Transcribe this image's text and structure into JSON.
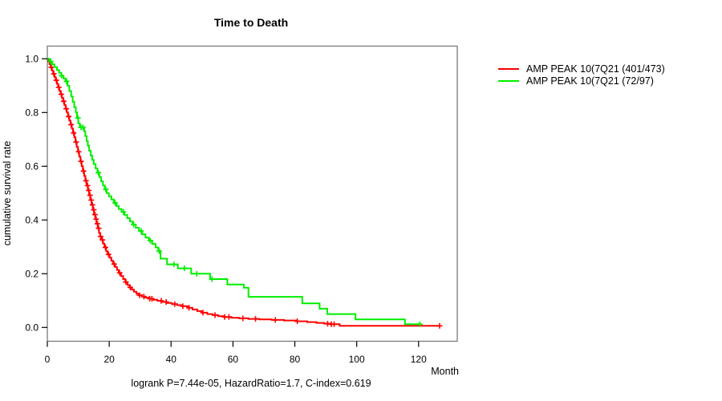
{
  "title": "Time to Death",
  "footnote": "logrank P=7.44e-05, HazardRatio=1.7, C-index=0.619",
  "chart_data": {
    "type": "line",
    "subtype": "kaplan-meier-step",
    "title": "Time to Death",
    "xlabel": "Month",
    "ylabel": "cumulative survival rate",
    "xlim": [
      0,
      132
    ],
    "ylim": [
      0.0,
      1.0
    ],
    "grid": false,
    "legend_position": "right-outside",
    "box_color": "#7a7a7a",
    "x_ticks": [
      {
        "v": 0,
        "label": "0"
      },
      {
        "v": 20,
        "label": "20"
      },
      {
        "v": 40,
        "label": "40"
      },
      {
        "v": 60,
        "label": "60"
      },
      {
        "v": 80,
        "label": "80"
      },
      {
        "v": 100,
        "label": "100"
      },
      {
        "v": 120,
        "label": "120"
      }
    ],
    "y_ticks": [
      {
        "v": 0.0,
        "label": "0.0"
      },
      {
        "v": 0.2,
        "label": "0.2"
      },
      {
        "v": 0.4,
        "label": "0.4"
      },
      {
        "v": 0.6,
        "label": "0.6"
      },
      {
        "v": 0.8,
        "label": "0.8"
      },
      {
        "v": 1.0,
        "label": "1.0"
      }
    ],
    "series": [
      {
        "name": "AMP PEAK 10(7Q21 (401/473)",
        "events_over_n": "401/473",
        "color": "#ff0000",
        "end_month": 126.8,
        "steps": [
          [
            0,
            1
          ],
          [
            0.3,
            0.99
          ],
          [
            0.7,
            0.98
          ],
          [
            1.1,
            0.968
          ],
          [
            1.5,
            0.956
          ],
          [
            1.9,
            0.944
          ],
          [
            2.3,
            0.932
          ],
          [
            2.7,
            0.92
          ],
          [
            3.1,
            0.907
          ],
          [
            3.5,
            0.894
          ],
          [
            3.9,
            0.881
          ],
          [
            4.3,
            0.868
          ],
          [
            4.7,
            0.855
          ],
          [
            5.1,
            0.842
          ],
          [
            5.5,
            0.828
          ],
          [
            5.9,
            0.814
          ],
          [
            6.3,
            0.8
          ],
          [
            6.7,
            0.785
          ],
          [
            7.1,
            0.77
          ],
          [
            7.5,
            0.755
          ],
          [
            7.9,
            0.74
          ],
          [
            8.3,
            0.724
          ],
          [
            8.7,
            0.708
          ],
          [
            9.1,
            0.69
          ],
          [
            9.5,
            0.672
          ],
          [
            9.9,
            0.654
          ],
          [
            10.3,
            0.636
          ],
          [
            10.7,
            0.618
          ],
          [
            11.1,
            0.6
          ],
          [
            11.5,
            0.582
          ],
          [
            11.9,
            0.564
          ],
          [
            12.3,
            0.546
          ],
          [
            12.7,
            0.528
          ],
          [
            13.1,
            0.51
          ],
          [
            13.5,
            0.492
          ],
          [
            13.9,
            0.474
          ],
          [
            14.3,
            0.456
          ],
          [
            14.7,
            0.438
          ],
          [
            15.1,
            0.42
          ],
          [
            15.5,
            0.403
          ],
          [
            15.9,
            0.386
          ],
          [
            16.3,
            0.369
          ],
          [
            16.7,
            0.352
          ],
          [
            17.1,
            0.339
          ],
          [
            17.5,
            0.326
          ],
          [
            18,
            0.312
          ],
          [
            18.5,
            0.298
          ],
          [
            19,
            0.284
          ],
          [
            19.5,
            0.272
          ],
          [
            20.1,
            0.26
          ],
          [
            20.7,
            0.248
          ],
          [
            21.3,
            0.236
          ],
          [
            21.9,
            0.225
          ],
          [
            22.5,
            0.214
          ],
          [
            23.1,
            0.203
          ],
          [
            23.8,
            0.191
          ],
          [
            24.5,
            0.18
          ],
          [
            25.2,
            0.169
          ],
          [
            25.9,
            0.158
          ],
          [
            26.6,
            0.149
          ],
          [
            27.3,
            0.141
          ],
          [
            28,
            0.133
          ],
          [
            28.8,
            0.126
          ],
          [
            29.6,
            0.12
          ],
          [
            30.6,
            0.115
          ],
          [
            31.7,
            0.111
          ],
          [
            32.9,
            0.107
          ],
          [
            34.2,
            0.103
          ],
          [
            35.6,
            0.099
          ],
          [
            37.1,
            0.095
          ],
          [
            38.7,
            0.091
          ],
          [
            40.3,
            0.087
          ],
          [
            42,
            0.083
          ],
          [
            43.7,
            0.079
          ],
          [
            45.3,
            0.073
          ],
          [
            46.9,
            0.067
          ],
          [
            48.5,
            0.061
          ],
          [
            50.1,
            0.055
          ],
          [
            51.7,
            0.05
          ],
          [
            53.4,
            0.046
          ],
          [
            55.2,
            0.042
          ],
          [
            57.2,
            0.039
          ],
          [
            59.5,
            0.036
          ],
          [
            62,
            0.034
          ],
          [
            65,
            0.032
          ],
          [
            68.5,
            0.03
          ],
          [
            72.5,
            0.028
          ],
          [
            76.5,
            0.026
          ],
          [
            80.5,
            0.023
          ],
          [
            84,
            0.02
          ],
          [
            87,
            0.017
          ],
          [
            89.5,
            0.014
          ],
          [
            91.5,
            0.012
          ],
          [
            94.5,
            0.006
          ]
        ],
        "censor_months": [
          1.3,
          2.1,
          2.9,
          3.7,
          4.5,
          5.3,
          6.1,
          6.9,
          7.7,
          8.5,
          9.3,
          10.1,
          10.9,
          11.7,
          12.5,
          13,
          13.4,
          13.8,
          14.2,
          14.6,
          15,
          15.4,
          15.8,
          16.2,
          16.6,
          17.2,
          17.8,
          18.8,
          19.8,
          21.6,
          23.4,
          25.4,
          26.8,
          29.8,
          31.2,
          33.1,
          33.8,
          36.8,
          38.4,
          41.2,
          43.8,
          45.8,
          50.3,
          54.2,
          57.3,
          58.7,
          63.2,
          67.3,
          73.7,
          80.8,
          90.6,
          91.8,
          92.7,
          126.8
        ]
      },
      {
        "name": "AMP PEAK 10(7Q21 (72/97)",
        "events_over_n": "72/97",
        "color": "#00ee00",
        "end_month": 120.4,
        "steps": [
          [
            0,
            1
          ],
          [
            0.7,
            0.99
          ],
          [
            1.5,
            0.979
          ],
          [
            2.3,
            0.969
          ],
          [
            3.1,
            0.958
          ],
          [
            3.8,
            0.948
          ],
          [
            4.5,
            0.937
          ],
          [
            5.2,
            0.927
          ],
          [
            5.9,
            0.916
          ],
          [
            6.5,
            0.9
          ],
          [
            7.1,
            0.88
          ],
          [
            7.7,
            0.86
          ],
          [
            8.2,
            0.84
          ],
          [
            8.7,
            0.82
          ],
          [
            9.2,
            0.8
          ],
          [
            9.6,
            0.78
          ],
          [
            10,
            0.76
          ],
          [
            10.5,
            0.745
          ],
          [
            11.9,
            0.73
          ],
          [
            12.3,
            0.712
          ],
          [
            12.7,
            0.694
          ],
          [
            13.1,
            0.676
          ],
          [
            13.5,
            0.658
          ],
          [
            14,
            0.64
          ],
          [
            14.5,
            0.624
          ],
          [
            15,
            0.608
          ],
          [
            15.6,
            0.592
          ],
          [
            16.2,
            0.576
          ],
          [
            16.8,
            0.56
          ],
          [
            17.4,
            0.544
          ],
          [
            18,
            0.528
          ],
          [
            18.6,
            0.514
          ],
          [
            19.2,
            0.5
          ],
          [
            19.9,
            0.488
          ],
          [
            20.7,
            0.476
          ],
          [
            21.5,
            0.464
          ],
          [
            22.3,
            0.452
          ],
          [
            23.1,
            0.441
          ],
          [
            24,
            0.43
          ],
          [
            24.9,
            0.419
          ],
          [
            25.8,
            0.407
          ],
          [
            26.7,
            0.395
          ],
          [
            27.6,
            0.383
          ],
          [
            28.6,
            0.371
          ],
          [
            29.6,
            0.359
          ],
          [
            30.6,
            0.347
          ],
          [
            31.7,
            0.335
          ],
          [
            32.8,
            0.323
          ],
          [
            33.9,
            0.311
          ],
          [
            35,
            0.298
          ],
          [
            35.9,
            0.285
          ],
          [
            36.6,
            0.256
          ],
          [
            38.7,
            0.235
          ],
          [
            42.2,
            0.22
          ],
          [
            46.5,
            0.2
          ],
          [
            52.6,
            0.18
          ],
          [
            58.2,
            0.16
          ],
          [
            63.5,
            0.148
          ],
          [
            65,
            0.114
          ],
          [
            82.4,
            0.09
          ],
          [
            88,
            0.07
          ],
          [
            90.5,
            0.05
          ],
          [
            99.6,
            0.03
          ],
          [
            115.6,
            0.012
          ]
        ],
        "censor_months": [
          1.1,
          4.6,
          6.2,
          9.9,
          10.9,
          11.5,
          16.5,
          18.9,
          21.9,
          24.6,
          27.9,
          30.3,
          33.3,
          36.1,
          40.9,
          44.3,
          48.3,
          53.2,
          120.4
        ]
      }
    ]
  }
}
